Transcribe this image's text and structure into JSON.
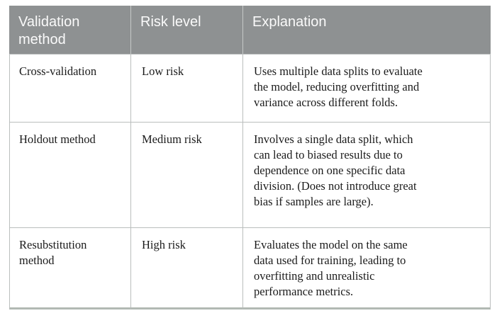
{
  "table": {
    "title_semantic": "Validation methods risk comparison table",
    "columns": [
      {
        "label": "Validation\nmethod"
      },
      {
        "label": "Risk level"
      },
      {
        "label": "Explanation"
      }
    ],
    "rows": [
      {
        "method": "Cross-validation",
        "risk_level": "Low risk",
        "explanation": "Uses multiple data splits to evaluate\nthe model, reducing overfitting and\nvariance across different folds."
      },
      {
        "method": "Holdout method",
        "risk_level": "Medium risk",
        "explanation": "Involves a single data split, which\ncan lead to biased results due to\ndependence on one specific data\ndivision. (Does not introduce great\nbias if samples are large)."
      },
      {
        "method": "Resubstitution\nmethod",
        "risk_level": "High risk",
        "explanation": "Evaluates the model on the same\ndata used for training, leading to\noverfitting and unrealistic\nperformance metrics."
      }
    ]
  },
  "colors": {
    "header_background": "#8e9192",
    "header_text": "#fafafa",
    "body_text": "#1b1b1b",
    "grid_line": "#babebd",
    "header_separator": "#c6c9c8",
    "bottom_border": "#b2b9b3",
    "page_background": "#ffffff"
  }
}
